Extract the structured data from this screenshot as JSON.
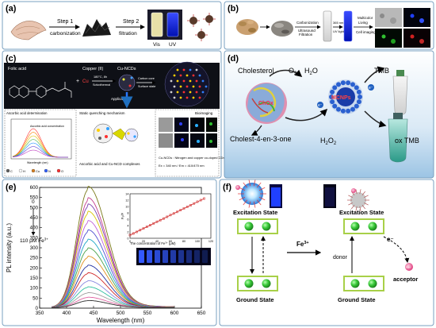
{
  "panels": {
    "a": {
      "label": "(a)",
      "step1": "Step 1",
      "step1_sub": "carbonization",
      "step2": "Step 2",
      "step2_sub": "filtration",
      "vis": "Vis",
      "uv": "UV"
    },
    "b": {
      "label": "(b)",
      "carbonization": "Carbonization",
      "ultrasound": "Ultrasound",
      "filtration": "Filtration",
      "uv_nm": "365 nm",
      "uv_light": "UV light",
      "multicolor": "Multicolor",
      "living": "Living",
      "cell_imaging": "Cell imaging"
    },
    "c": {
      "label": "(c)",
      "folic_acid": "Folic acid",
      "copper": "Copper (II)",
      "cu_ncds": "Cu-NCDs",
      "conditions_1": "180°C, 8h",
      "conditions_2": "Solvothermal",
      "carbon_core": "Carbon core",
      "surface_state": "Surface state",
      "applications": "Applications",
      "ascorbic_det": "Ascorbic acid determination",
      "static_quench": "Static quenching mechanism",
      "bioimaging": "Bioimaging",
      "aa_conc": "Ascorbic acid concentration",
      "wavelength": "Wavelength (nm)",
      "complexes": "Ascorbic acid and Cu-NCD complexes",
      "cu_ncds_desc": "Cu-NCDs : Nitrogen and copper co-doped CDs",
      "ex_em": "Ex = 340 nm / Em = 410/470 nm",
      "legend": [
        "C",
        "H",
        "Cu",
        "N",
        "O"
      ]
    },
    "d": {
      "label": "(d)",
      "cholesterol": "Cholesterol",
      "o2": "O",
      "o2_sub": "2",
      "h2o": "H",
      "h2o_sub": "2",
      "h2o_o": "O",
      "tmb": "TMB",
      "chox": "ChOx",
      "mcnps": "MCNPs",
      "cholest": "Cholest-4-en-3-one",
      "h2o2": "H",
      "h2o2_sub": "2",
      "h2o2_o": "O",
      "h2o2_sub2": "2",
      "ox_tmb": "ox TMB",
      "electron": "e⁻"
    },
    "e": {
      "label": "(e)",
      "range_top": "0",
      "range_bottom": "110 μM Fe",
      "range_bottom_sup": "3+",
      "inset_xlabel": "The concentration of Fe",
      "inset_xlabel_sup": "3+",
      "inset_xlabel_end": " (μM)",
      "inset_ylabel": "F₀/F"
    },
    "f": {
      "label": "(f)",
      "excitation_state": "Excitation State",
      "ground_state": "Ground State",
      "fe3": "Fe",
      "fe3_sup": "3+",
      "electron": "e⁻",
      "donor": "donor",
      "acceptor": "acceptor",
      "fe_dot": "Fe³⁺"
    }
  },
  "chart_data": [
    {
      "type": "line",
      "title": "",
      "xlabel": "Wavelength (nm)",
      "ylabel": "PL intensity (a.u.)",
      "xlim": [
        350,
        650
      ],
      "ylim": [
        0,
        600
      ],
      "xticks": [
        350,
        400,
        450,
        500,
        550,
        600,
        650
      ],
      "yticks": [
        0,
        50,
        100,
        150,
        200,
        250,
        300,
        350,
        400,
        450,
        500,
        550,
        600
      ],
      "grid": false,
      "peak_wavelength": 440,
      "x_start": 372,
      "x_end": 600,
      "series": [
        {
          "peak": 585,
          "color": "#7a7a18"
        },
        {
          "peak": 530,
          "color": "#c43c8c"
        },
        {
          "peak": 500,
          "color": "#7b3fb0"
        },
        {
          "peak": 465,
          "color": "#d8c400"
        },
        {
          "peak": 420,
          "color": "#c060d8"
        },
        {
          "peak": 375,
          "color": "#5050d0"
        },
        {
          "peak": 330,
          "color": "#20a8c8"
        },
        {
          "peak": 288,
          "color": "#48a048"
        },
        {
          "peak": 248,
          "color": "#e09020"
        },
        {
          "peak": 205,
          "color": "#2030a0"
        },
        {
          "peak": 168,
          "color": "#d02828"
        },
        {
          "peak": 130,
          "color": "#8888e0"
        },
        {
          "peak": 100,
          "color": "#30c0a0"
        },
        {
          "peak": 72,
          "color": "#a0a0a0"
        },
        {
          "peak": 50,
          "color": "#e060a0"
        },
        {
          "peak": 34,
          "color": "#303030"
        }
      ]
    },
    {
      "type": "scatter",
      "title": "",
      "xlabel": "The concentration of Fe3+ (μM)",
      "ylabel": "F₀/F",
      "xlim": [
        0,
        120
      ],
      "ylim": [
        0,
        14
      ],
      "xticks": [
        0,
        20,
        40,
        60,
        80,
        100,
        120
      ],
      "yticks": [
        0,
        2,
        4,
        6,
        8,
        10,
        12,
        14
      ],
      "x": [
        0,
        5,
        10,
        15,
        20,
        25,
        30,
        35,
        40,
        45,
        50,
        55,
        60,
        65,
        70,
        75,
        80,
        85,
        90,
        95,
        100,
        105,
        110
      ],
      "y": [
        1.0,
        1.5,
        2.0,
        2.55,
        3.1,
        3.6,
        4.1,
        4.65,
        5.2,
        5.7,
        6.2,
        6.75,
        7.3,
        7.8,
        8.3,
        8.85,
        9.4,
        9.9,
        10.4,
        10.95,
        11.5,
        12.0,
        12.5
      ],
      "fit": true,
      "marker_color": "#d02828"
    }
  ],
  "colors": {
    "panel_border": "#7aa0c0",
    "green_box": "#a8d048",
    "green_dot": "#3ec33e",
    "uv_blue": "#2038ff",
    "dark_bg": "#101418"
  }
}
